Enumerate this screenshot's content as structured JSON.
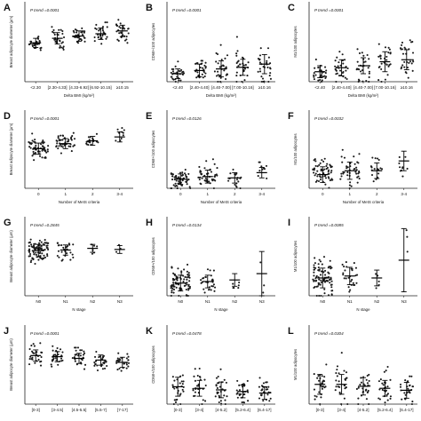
{
  "chart_data": [
    {
      "panel": "A",
      "type": "scatter",
      "ylabel": "Breast adipocyte diameter (µm)",
      "xlabel": "Delta BMI (kg/m²)",
      "ptrend": "P trend =0.0001",
      "categories": [
        "<2.30",
        "[2.30-4.33]",
        "[4.33-6.92]",
        "[6.92-10.15]",
        "≥10.15"
      ],
      "ylim": [
        0,
        140
      ],
      "yticks": [],
      "series": [
        {
          "mean": 68,
          "sd": 8,
          "n": 30,
          "min": 50,
          "max": 82
        },
        {
          "mean": 76,
          "sd": 10,
          "n": 30,
          "min": 55,
          "max": 96
        },
        {
          "mean": 80,
          "sd": 9,
          "n": 30,
          "min": 60,
          "max": 98
        },
        {
          "mean": 84,
          "sd": 10,
          "n": 30,
          "min": 64,
          "max": 104
        },
        {
          "mean": 89,
          "sd": 10,
          "n": 30,
          "min": 68,
          "max": 110
        }
      ]
    },
    {
      "panel": "B",
      "type": "scatter",
      "ylabel": "CD68+/100 adipocytes",
      "xlabel": "Delta BMI (kg/m²)",
      "ptrend": "P trend =0.0001",
      "categories": [
        "<2.40",
        "[2.40-4.40]",
        "[4.40-7.00]",
        "[7.00-10.16]",
        "≥10.16"
      ],
      "ylim": [
        0,
        50
      ],
      "yticks": [],
      "series": [
        {
          "mean": 5,
          "sd": 3,
          "n": 30,
          "min": 0,
          "max": 14
        },
        {
          "mean": 7,
          "sd": 4,
          "n": 30,
          "min": 0,
          "max": 20
        },
        {
          "mean": 8,
          "sd": 5,
          "n": 30,
          "min": 0,
          "max": 24
        },
        {
          "mean": 9,
          "sd": 5,
          "n": 30,
          "min": 0,
          "max": 30
        },
        {
          "mean": 11,
          "sd": 6,
          "n": 30,
          "min": 0,
          "max": 33
        }
      ]
    },
    {
      "panel": "C",
      "type": "scatter",
      "ylabel": "M1/100 adipocytes",
      "xlabel": "Delta BMI (kg/m²)",
      "ptrend": "P trend =0.0001",
      "categories": [
        "<2.40",
        "[2.40-4.40]",
        "[4.40-7.00]",
        "[7.00-10.16]",
        "≥10.16"
      ],
      "ylim": [
        0,
        20
      ],
      "yticks": [],
      "series": [
        {
          "mean": 2.5,
          "sd": 1.5,
          "n": 30,
          "min": 0,
          "max": 8
        },
        {
          "mean": 3.5,
          "sd": 2,
          "n": 30,
          "min": 0,
          "max": 10
        },
        {
          "mean": 4,
          "sd": 2,
          "n": 30,
          "min": 0,
          "max": 11
        },
        {
          "mean": 5,
          "sd": 2.5,
          "n": 30,
          "min": 0,
          "max": 13
        },
        {
          "mean": 5.5,
          "sd": 2.5,
          "n": 30,
          "min": 0,
          "max": 14
        }
      ]
    },
    {
      "panel": "D",
      "type": "scatter",
      "ylabel": "Breast adipocyte diameter (µm)",
      "xlabel": "Number of MetS criteria",
      "ptrend": "P trend =0.0001",
      "categories": [
        "0",
        "1",
        "2",
        "3-4"
      ],
      "ylim": [
        0,
        140
      ],
      "yticks": [],
      "series": [
        {
          "mean": 71,
          "sd": 10,
          "n": 60,
          "min": 45,
          "max": 98
        },
        {
          "mean": 80,
          "sd": 9,
          "n": 45,
          "min": 60,
          "max": 102
        },
        {
          "mean": 85,
          "sd": 8,
          "n": 18,
          "min": 70,
          "max": 100
        },
        {
          "mean": 92,
          "sd": 9,
          "n": 10,
          "min": 78,
          "max": 108
        }
      ]
    },
    {
      "panel": "E",
      "type": "scatter",
      "ylabel": "CD68+/100 adipocytes",
      "xlabel": "Number of MetS criteria",
      "ptrend": "P trend =0.0126",
      "categories": [
        "0",
        "1",
        "2",
        "3-4"
      ],
      "ylim": [
        0,
        60
      ],
      "yticks": [],
      "series": [
        {
          "mean": 7,
          "sd": 4,
          "n": 60,
          "min": 0,
          "max": 22
        },
        {
          "mean": 9,
          "sd": 5,
          "n": 45,
          "min": 0,
          "max": 45
        },
        {
          "mean": 8,
          "sd": 4,
          "n": 18,
          "min": 0,
          "max": 24
        },
        {
          "mean": 12,
          "sd": 4,
          "n": 10,
          "min": 5,
          "max": 20
        }
      ]
    },
    {
      "panel": "F",
      "type": "scatter",
      "ylabel": "M1/100 adipocytes",
      "xlabel": "Number of MetS criteria",
      "ptrend": "P trend =0.0032",
      "categories": [
        "0",
        "1",
        "2",
        "3-4"
      ],
      "ylim": [
        0,
        20
      ],
      "yticks": [],
      "series": [
        {
          "mean": 3.5,
          "sd": 2,
          "n": 60,
          "min": 0,
          "max": 12
        },
        {
          "mean": 4.5,
          "sd": 2.2,
          "n": 45,
          "min": 0,
          "max": 13
        },
        {
          "mean": 4.5,
          "sd": 2,
          "n": 18,
          "min": 0,
          "max": 9
        },
        {
          "mean": 7,
          "sd": 2.5,
          "n": 10,
          "min": 3,
          "max": 12
        }
      ]
    },
    {
      "panel": "G",
      "type": "scatter",
      "ylabel": "Breast adipocyte diameter (µm)",
      "xlabel": "N stage",
      "ptrend": "P trend =0.2845",
      "categories": [
        "N0",
        "N1",
        "N2",
        "N3"
      ],
      "ylim": [
        0,
        140
      ],
      "yticks": [],
      "series": [
        {
          "mean": 80,
          "sd": 11,
          "n": 90,
          "min": 52,
          "max": 106
        },
        {
          "mean": 81,
          "sd": 9,
          "n": 28,
          "min": 62,
          "max": 100
        },
        {
          "mean": 84,
          "sd": 7,
          "n": 6,
          "min": 74,
          "max": 94
        },
        {
          "mean": 82,
          "sd": 7,
          "n": 3,
          "min": 76,
          "max": 90
        }
      ]
    },
    {
      "panel": "H",
      "type": "scatter",
      "ylabel": "CD68+/100 adipocytes",
      "xlabel": "N stage",
      "ptrend": "P trend =0.0134",
      "categories": [
        "N0",
        "N1",
        "N2",
        "N3"
      ],
      "ylim": [
        0,
        50
      ],
      "yticks": [],
      "series": [
        {
          "mean": 8,
          "sd": 5,
          "n": 90,
          "min": 0,
          "max": 46
        },
        {
          "mean": 9,
          "sd": 4,
          "n": 28,
          "min": 2,
          "max": 22
        },
        {
          "mean": 10,
          "sd": 4,
          "n": 6,
          "min": 5,
          "max": 16
        },
        {
          "mean": 14,
          "sd": 14,
          "n": 3,
          "min": 2,
          "max": 32
        }
      ]
    },
    {
      "panel": "I",
      "type": "scatter",
      "ylabel": "M1/100 adipocytes",
      "xlabel": "N stage",
      "ptrend": "P trend =0.0085",
      "categories": [
        "N0",
        "N1",
        "N2",
        "N3"
      ],
      "ylim": [
        0,
        20
      ],
      "yticks": [],
      "series": [
        {
          "mean": 4.5,
          "sd": 2.5,
          "n": 90,
          "min": 0,
          "max": 18
        },
        {
          "mean": 5,
          "sd": 2.2,
          "n": 28,
          "min": 1,
          "max": 11
        },
        {
          "mean": 4.5,
          "sd": 2,
          "n": 6,
          "min": 1,
          "max": 8
        },
        {
          "mean": 9,
          "sd": 8,
          "n": 3,
          "min": 2,
          "max": 17
        }
      ]
    },
    {
      "panel": "J",
      "type": "scatter",
      "ylabel": "Breast adipocyte diameter (µm)",
      "xlabel": "",
      "ptrend": "P trend =0.0001",
      "categories": [
        "[0-3]",
        "[3-4.5]",
        "[4.5-5.5]",
        "[5.5-7]",
        "[7-17]"
      ],
      "ylim": [
        0,
        140
      ],
      "yticks": [],
      "series": [
        {
          "mean": 86,
          "sd": 10,
          "n": 28,
          "min": 66,
          "max": 108
        },
        {
          "mean": 84,
          "sd": 9,
          "n": 28,
          "min": 65,
          "max": 104
        },
        {
          "mean": 81,
          "sd": 9,
          "n": 28,
          "min": 62,
          "max": 100
        },
        {
          "mean": 78,
          "sd": 9,
          "n": 28,
          "min": 58,
          "max": 98
        },
        {
          "mean": 74,
          "sd": 9,
          "n": 28,
          "min": 54,
          "max": 94
        }
      ]
    },
    {
      "panel": "K",
      "type": "scatter",
      "ylabel": "CD68+/100 adipocytes",
      "xlabel": "",
      "ptrend": "P trend =0.0478",
      "categories": [
        "[0-3]",
        "[3-4]",
        "[4-5.2]",
        "[5.2-6.4]",
        "[6.4-17]"
      ],
      "ylim": [
        0,
        50
      ],
      "yticks": [],
      "series": [
        {
          "mean": 11,
          "sd": 6,
          "n": 28,
          "min": 0,
          "max": 42
        },
        {
          "mean": 10,
          "sd": 5,
          "n": 28,
          "min": 0,
          "max": 28
        },
        {
          "mean": 9,
          "sd": 5,
          "n": 28,
          "min": 0,
          "max": 25
        },
        {
          "mean": 8,
          "sd": 4,
          "n": 28,
          "min": 0,
          "max": 22
        },
        {
          "mean": 7,
          "sd": 4,
          "n": 28,
          "min": 0,
          "max": 20
        }
      ]
    },
    {
      "panel": "L",
      "type": "scatter",
      "ylabel": "M1/100 adipocytes",
      "xlabel": "",
      "ptrend": "P trend =0.0304",
      "categories": [
        "[0-3]",
        "[3-4]",
        "[4-5.2]",
        "[5.2-6.4]",
        "[6.4-17]"
      ],
      "ylim": [
        0,
        20
      ],
      "yticks": [],
      "series": [
        {
          "mean": 5,
          "sd": 2.5,
          "n": 28,
          "min": 0,
          "max": 15
        },
        {
          "mean": 5,
          "sd": 2.5,
          "n": 28,
          "min": 0,
          "max": 13
        },
        {
          "mean": 4.5,
          "sd": 2.2,
          "n": 28,
          "min": 0,
          "max": 12
        },
        {
          "mean": 4,
          "sd": 2,
          "n": 28,
          "min": 0,
          "max": 10
        },
        {
          "mean": 3.5,
          "sd": 2,
          "n": 28,
          "min": 0,
          "max": 9
        }
      ]
    }
  ]
}
